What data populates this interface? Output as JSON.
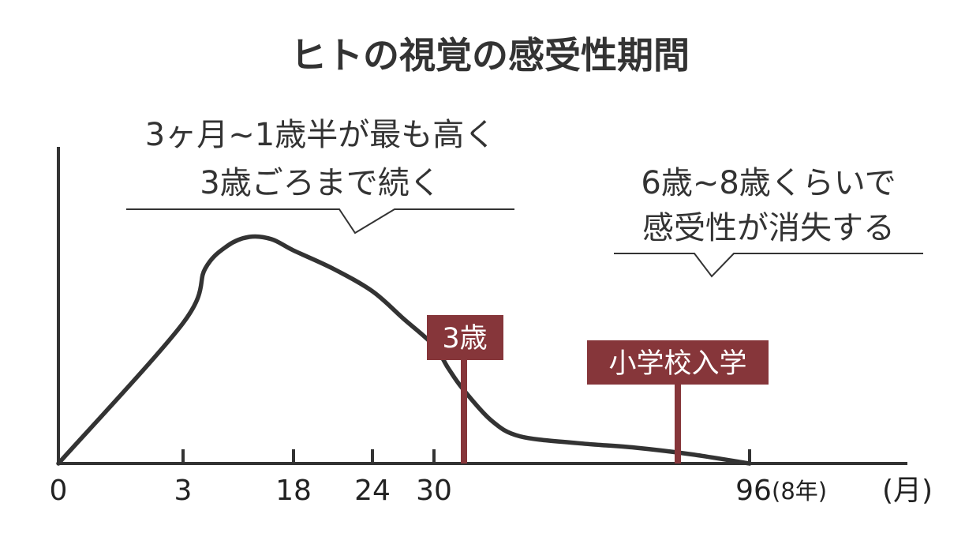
{
  "chart_data": {
    "type": "line",
    "title": "ヒトの視覚の感受性期間",
    "xlabel": "(月)",
    "ylabel": "",
    "x_ticks": [
      {
        "value": 0,
        "label": "0"
      },
      {
        "value": 3,
        "label": "3"
      },
      {
        "value": 18,
        "label": "18"
      },
      {
        "value": 24,
        "label": "24"
      },
      {
        "value": 30,
        "label": "30"
      },
      {
        "value": 96,
        "label": "96"
      }
    ],
    "x_tick_suffix_96": "(8年)",
    "x_unit_label": "(月)",
    "y_axis_values_shown": false,
    "grid": false,
    "series": [
      {
        "x": [
          0,
          3,
          6,
          9,
          12,
          15,
          18,
          21,
          24,
          27,
          30,
          33,
          36,
          42,
          48,
          60,
          72,
          84,
          96
        ],
        "y": [
          0,
          0.62,
          0.86,
          0.96,
          1.0,
          0.99,
          0.94,
          0.86,
          0.76,
          0.64,
          0.52,
          0.42,
          0.33,
          0.19,
          0.12,
          0.09,
          0.07,
          0.04,
          0.0
        ]
      }
    ],
    "annotations": [
      {
        "id": "peak",
        "lines": [
          "3ヶ月~1歳半が最も高く",
          "3歳ごろまで続く"
        ]
      },
      {
        "id": "loss",
        "lines": [
          "6歳~8歳くらいで",
          "感受性が消失する"
        ]
      }
    ],
    "markers": [
      {
        "label": "3歳",
        "x": 36,
        "color": "#86363a"
      },
      {
        "label": "小学校入学",
        "x": 72,
        "color": "#86363a"
      }
    ],
    "colors": {
      "curve": "#333333",
      "axis": "#333333",
      "marker": "#86363a"
    }
  }
}
